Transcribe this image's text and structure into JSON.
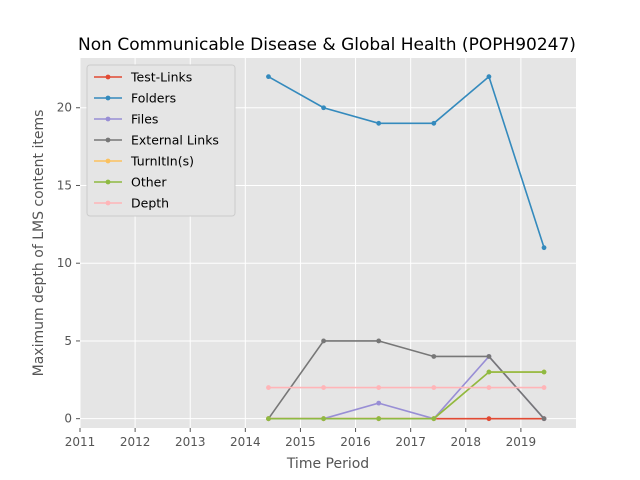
{
  "chart_data": {
    "type": "line",
    "title": "Non Communicable Disease & Global Health (POPH90247)",
    "xlabel": "Time Period",
    "ylabel": "Maximum depth of LMS content items",
    "xlim": [
      2011,
      2020
    ],
    "ylim": [
      -0.6,
      23.2
    ],
    "xticks": [
      "2011",
      "2012",
      "2013",
      "2014",
      "2015",
      "2016",
      "2017",
      "2018",
      "2019"
    ],
    "yticks": [
      "0",
      "5",
      "10",
      "15",
      "20"
    ],
    "grid": true,
    "legend_position": "upper-left",
    "x": [
      2014.42,
      2015.42,
      2016.42,
      2017.42,
      2018.42,
      2019.42
    ],
    "series": [
      {
        "name": "Test-Links",
        "color": "#e24a33",
        "values": [
          0,
          0,
          0,
          0,
          0,
          0
        ]
      },
      {
        "name": "Folders",
        "color": "#348abd",
        "values": [
          22,
          20,
          19,
          19,
          22,
          11
        ]
      },
      {
        "name": "Files",
        "color": "#988ed5",
        "values": [
          0,
          0,
          1,
          0,
          4,
          0
        ]
      },
      {
        "name": "External Links",
        "color": "#777777",
        "values": [
          0,
          5,
          5,
          4,
          4,
          0
        ]
      },
      {
        "name": "TurnItIn(s)",
        "color": "#fbc15e",
        "values": [
          0,
          0,
          0,
          0,
          3,
          3
        ]
      },
      {
        "name": "Other",
        "color": "#8eba42",
        "values": [
          0,
          0,
          0,
          0,
          3,
          3
        ]
      },
      {
        "name": "Depth",
        "color": "#ffb5b8",
        "values": [
          2,
          2,
          2,
          2,
          2,
          2
        ]
      }
    ]
  }
}
